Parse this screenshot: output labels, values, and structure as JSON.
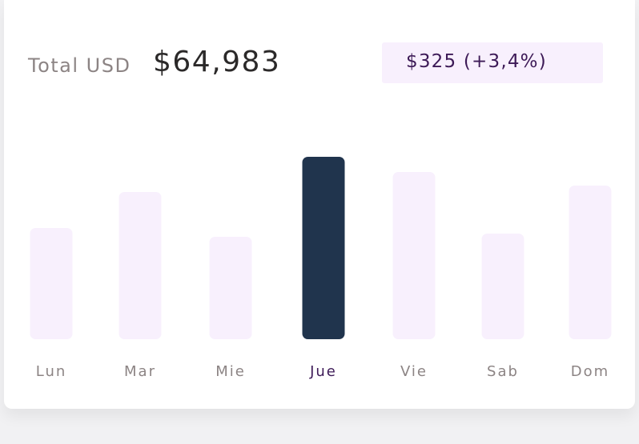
{
  "summary": {
    "total_label": "Total USD",
    "total_value": "$64,983",
    "change": "$325 (+3,4%)"
  },
  "colors": {
    "bar_default": "#f8f0fd",
    "bar_highlight": "#20344d",
    "label_default": "#8c8484",
    "label_highlight": "#3d1a57",
    "badge_bg": "#f8f0fd"
  },
  "chart_data": {
    "type": "bar",
    "categories": [
      "Lun",
      "Mar",
      "Mie",
      "Jue",
      "Vie",
      "Sab",
      "Dom"
    ],
    "values": [
      139,
      184,
      128,
      228,
      209,
      132,
      192
    ],
    "highlight_index": 3,
    "ylim": [
      0,
      228
    ],
    "grid": false,
    "legend": "none",
    "title": "",
    "xlabel": "",
    "ylabel": ""
  }
}
